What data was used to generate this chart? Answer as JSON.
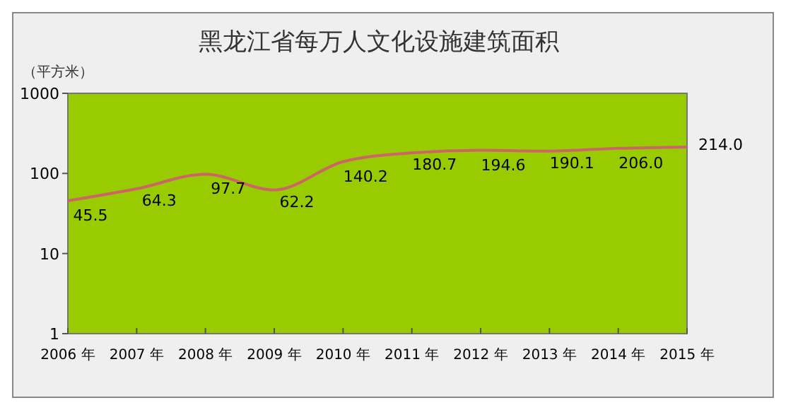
{
  "chart_data": {
    "type": "line",
    "title": "黑龙江省每万人文化设施建筑面积",
    "ylabel": "（平方米）",
    "categories": [
      "2006 年",
      "2007 年",
      "2008 年",
      "2009 年",
      "2010 年",
      "2011 年",
      "2012 年",
      "2013 年",
      "2014 年",
      "2015 年"
    ],
    "series": [
      {
        "color": "#cc6666",
        "values": [
          45.5,
          64.3,
          97.7,
          62.2,
          140.2,
          180.7,
          194.6,
          190.1,
          206.0,
          214.0
        ]
      }
    ],
    "value_labels": [
      "45.5",
      "64.3",
      "97.7",
      "62.2",
      "140.2",
      "180.7",
      "194.6",
      "190.1",
      "206.0",
      "214.0"
    ],
    "log": true,
    "ylim": [
      1,
      1000
    ],
    "yticks": [
      1,
      10,
      100,
      1000
    ],
    "grid": false,
    "marker": "none",
    "line_style": "solid"
  }
}
